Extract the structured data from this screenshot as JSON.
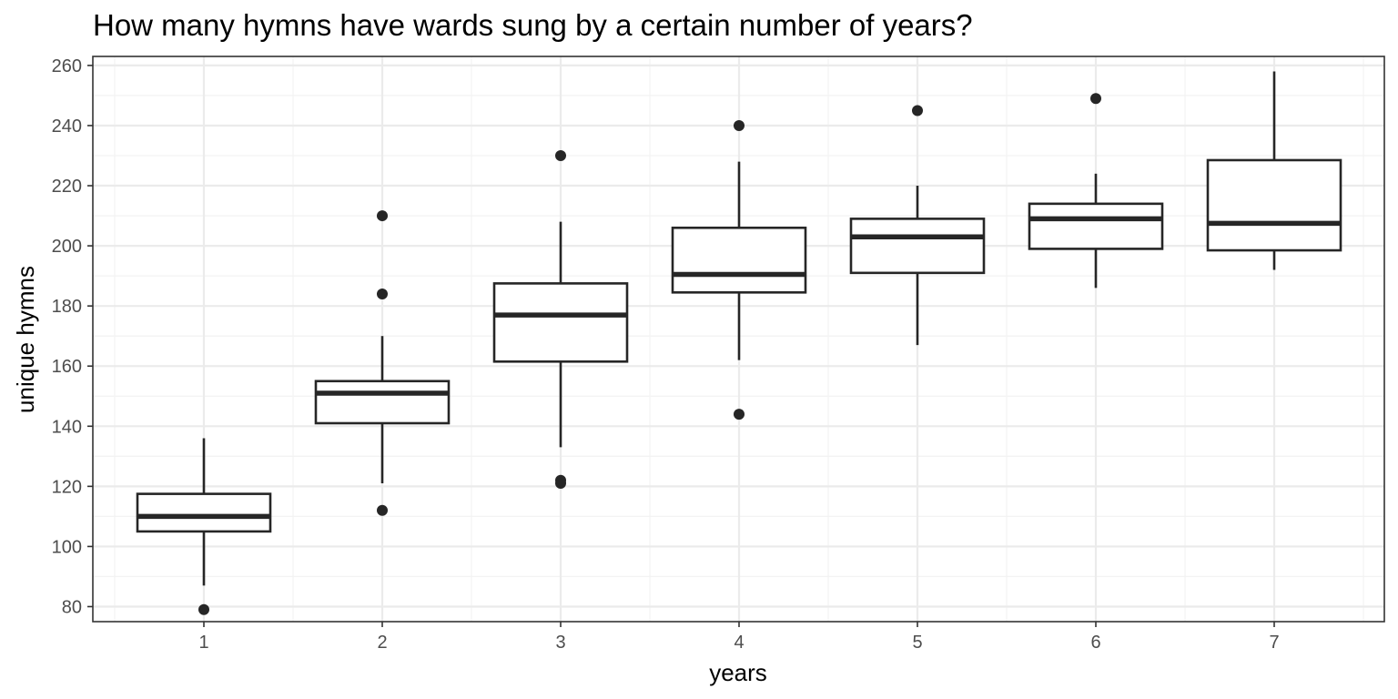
{
  "chart_data": {
    "type": "boxplot",
    "title": "How many hymns have wards sung by a certain number of years?",
    "xlabel": "years",
    "ylabel": "unique hymns",
    "categories": [
      "1",
      "2",
      "3",
      "4",
      "5",
      "6",
      "7"
    ],
    "ylim": [
      75,
      263
    ],
    "yticks": [
      80,
      100,
      120,
      140,
      160,
      180,
      200,
      220,
      240,
      260
    ],
    "grid": true,
    "theme": "bw",
    "colors": {
      "box_line": "#262626",
      "grid_major": "#ebebeb",
      "grid_minor": "#f3f3f3",
      "panel_border": "#333333",
      "outlier": "#262626"
    },
    "boxes": [
      {
        "category": "1",
        "whisker_low": 87,
        "q1": 105,
        "median": 110,
        "q3": 117.5,
        "whisker_high": 136,
        "outliers": [
          79
        ]
      },
      {
        "category": "2",
        "whisker_low": 121,
        "q1": 141,
        "median": 151,
        "q3": 155,
        "whisker_high": 170,
        "outliers": [
          112,
          184,
          210
        ]
      },
      {
        "category": "3",
        "whisker_low": 133,
        "q1": 161.5,
        "median": 177,
        "q3": 187.5,
        "whisker_high": 208,
        "outliers": [
          121,
          122,
          230
        ]
      },
      {
        "category": "4",
        "whisker_low": 162,
        "q1": 184.5,
        "median": 190.5,
        "q3": 206,
        "whisker_high": 228,
        "outliers": [
          144,
          240
        ]
      },
      {
        "category": "5",
        "whisker_low": 167,
        "q1": 191,
        "median": 203,
        "q3": 209,
        "whisker_high": 220,
        "outliers": [
          245
        ]
      },
      {
        "category": "6",
        "whisker_low": 186,
        "q1": 199,
        "median": 209,
        "q3": 214,
        "whisker_high": 224,
        "outliers": [
          249
        ]
      },
      {
        "category": "7",
        "whisker_low": 192,
        "q1": 198.5,
        "median": 207.5,
        "q3": 228.5,
        "whisker_high": 258,
        "outliers": []
      }
    ]
  }
}
